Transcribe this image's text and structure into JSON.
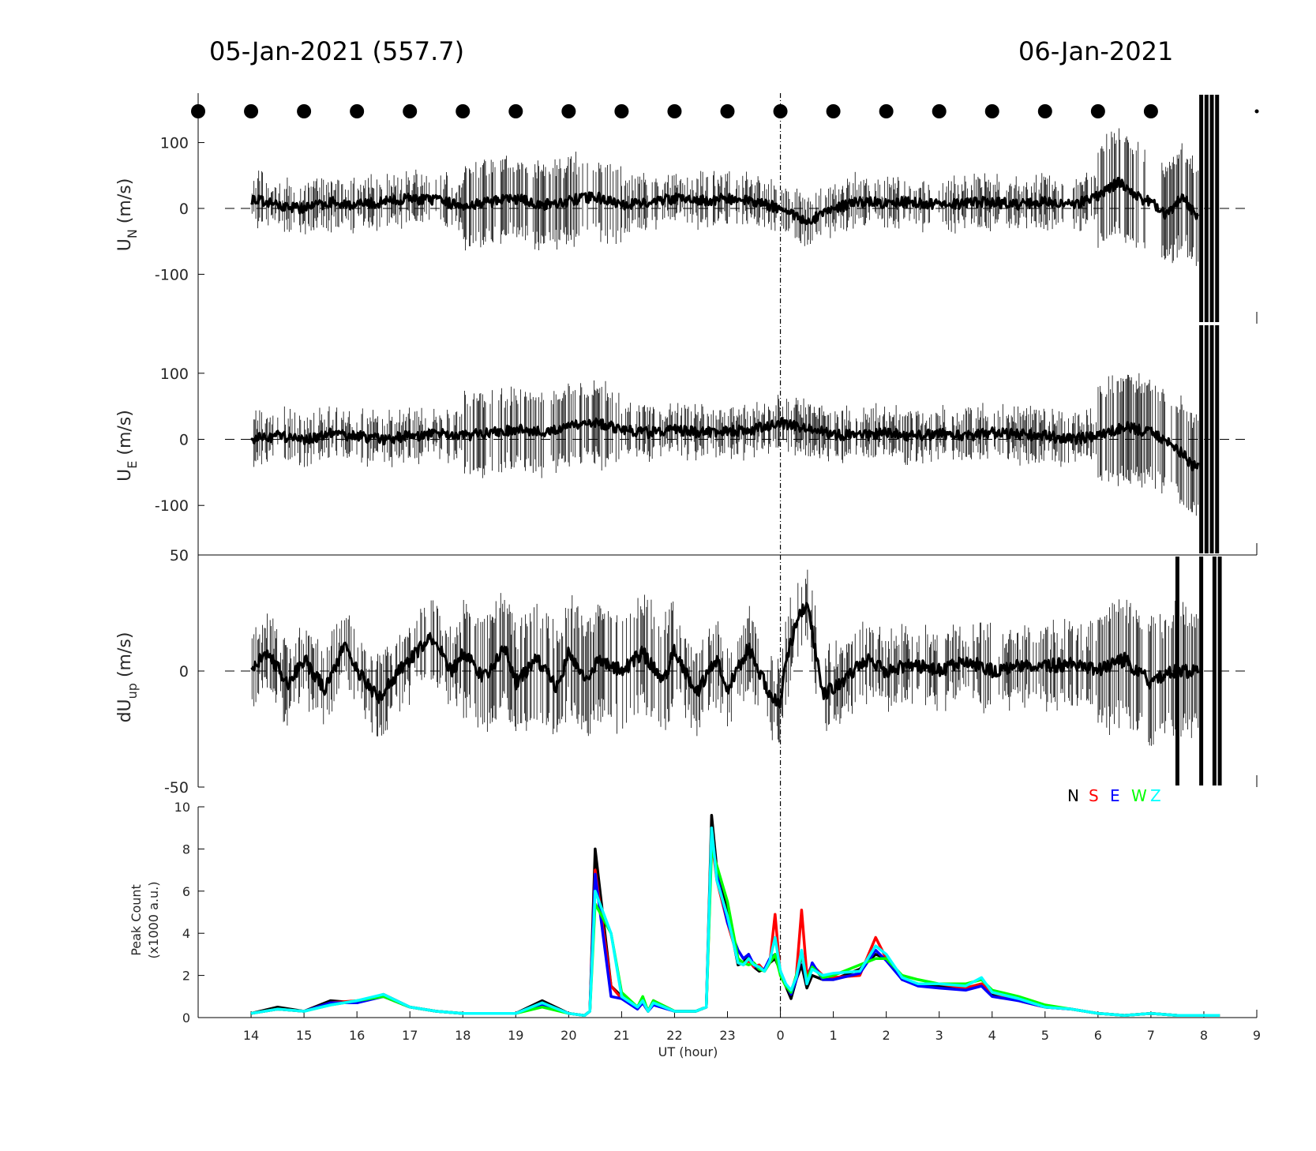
{
  "header": {
    "left_title": "05-Jan-2021 (557.7)",
    "right_title": "06-Jan-2021"
  },
  "chart_data": [
    {
      "type": "line",
      "panel": "UN",
      "ylabel_main": "U",
      "ylabel_sub": "N",
      "ylabel_unit": " (m/s)",
      "yticks": [
        "100",
        "0",
        "-100"
      ],
      "ylim": [
        -175,
        175
      ],
      "xlim": [
        -11,
        9
      ],
      "baseline": 0,
      "grid": false,
      "series": [
        {
          "x": [
            -10,
            -9.5,
            -9,
            -8.5,
            -8,
            -7.5,
            -7,
            -6.5,
            -6,
            -5.5,
            -5,
            -4.5,
            -4,
            -3.5,
            -3,
            -2.5,
            -2,
            -1.5,
            -1,
            -0.5,
            0,
            0.3,
            0.5,
            1,
            1.5,
            2,
            2.5,
            3,
            3.5,
            4,
            4.5,
            5,
            5.5,
            6,
            6.4,
            6.8,
            7,
            7.3,
            7.6,
            7.9
          ],
          "y": [
            15,
            5,
            0,
            10,
            5,
            10,
            15,
            12,
            5,
            10,
            15,
            5,
            12,
            18,
            5,
            10,
            15,
            12,
            15,
            10,
            0,
            -10,
            -20,
            0,
            10,
            8,
            10,
            5,
            8,
            10,
            5,
            10,
            5,
            20,
            40,
            15,
            10,
            -10,
            20,
            -20
          ]
        }
      ],
      "dots_x": [
        -11,
        -10,
        -9,
        -8,
        -7,
        -6,
        -5,
        -4,
        -3,
        -2,
        -1,
        0,
        1,
        2,
        3,
        4,
        5,
        6,
        7
      ]
    },
    {
      "type": "line",
      "panel": "UE",
      "ylabel_main": "U",
      "ylabel_sub": "E",
      "ylabel_unit": " (m/s)",
      "yticks": [
        "100",
        "0",
        "-100"
      ],
      "ylim": [
        -175,
        175
      ],
      "xlim": [
        -11,
        9
      ],
      "baseline": 0,
      "grid": false,
      "series": [
        {
          "x": [
            -10,
            -9.5,
            -9,
            -8.5,
            -8,
            -7.5,
            -7,
            -6.5,
            -6,
            -5.5,
            -5,
            -4.5,
            -4,
            -3.5,
            -3,
            -2.5,
            -2,
            -1.5,
            -1,
            -0.5,
            0,
            0.3,
            0.6,
            1,
            1.5,
            2,
            2.5,
            3,
            3.5,
            4,
            4.5,
            5,
            5.5,
            6,
            6.5,
            7,
            7.4,
            7.8
          ],
          "y": [
            0,
            5,
            0,
            8,
            5,
            0,
            5,
            8,
            5,
            10,
            15,
            10,
            20,
            25,
            15,
            10,
            15,
            10,
            12,
            15,
            25,
            20,
            15,
            8,
            5,
            10,
            5,
            8,
            5,
            10,
            8,
            5,
            0,
            5,
            20,
            10,
            -5,
            -40
          ]
        }
      ]
    },
    {
      "type": "line",
      "panel": "dUup",
      "ylabel_main": "dU",
      "ylabel_sub": "up",
      "ylabel_unit": " (m/s)",
      "yticks": [
        "50",
        "0",
        "-50"
      ],
      "ylim": [
        -50,
        50
      ],
      "xlim": [
        -11,
        9
      ],
      "baseline": 0,
      "grid": false,
      "series": [
        {
          "x": [
            -10,
            -9.7,
            -9.3,
            -9,
            -8.6,
            -8.2,
            -8,
            -7.6,
            -7.2,
            -7,
            -6.6,
            -6.2,
            -6,
            -5.6,
            -5.2,
            -5,
            -4.6,
            -4.2,
            -4,
            -3.7,
            -3.4,
            -3,
            -2.6,
            -2.2,
            -2,
            -1.6,
            -1.2,
            -1,
            -0.6,
            -0.2,
            0,
            0.1,
            0.3,
            0.5,
            0.8,
            1.2,
            1.6,
            2,
            2.5,
            3,
            3.5,
            4,
            4.5,
            5,
            5.5,
            6,
            6.5,
            7,
            7.4
          ],
          "y": [
            0,
            8,
            -5,
            5,
            -8,
            12,
            0,
            -12,
            0,
            5,
            15,
            0,
            8,
            -3,
            10,
            -5,
            5,
            -8,
            8,
            -3,
            5,
            0,
            8,
            -5,
            10,
            -10,
            5,
            -8,
            10,
            -10,
            -15,
            5,
            20,
            30,
            -10,
            -5,
            5,
            0,
            3,
            0,
            5,
            0,
            3,
            2,
            3,
            0,
            5,
            -5,
            0
          ]
        }
      ]
    },
    {
      "type": "line",
      "panel": "peak_count",
      "ylabel_line1": "Peak Count",
      "ylabel_line2": "(x1000 a.u.)",
      "xlabel": "UT (hour)",
      "yticks": [
        "0",
        "2",
        "4",
        "6",
        "8",
        "10"
      ],
      "xticks": [
        "14",
        "15",
        "16",
        "17",
        "18",
        "19",
        "20",
        "21",
        "22",
        "23",
        "0",
        "1",
        "2",
        "3",
        "4",
        "5",
        "6",
        "7",
        "8",
        "9"
      ],
      "ylim": [
        0,
        10
      ],
      "xlim": [
        -11,
        9
      ],
      "grid": false,
      "legend": {
        "placement": "top-right",
        "entries": [
          {
            "name": "N",
            "color": "#000000"
          },
          {
            "name": "S",
            "color": "#ff0000"
          },
          {
            "name": "E",
            "color": "#0000ff"
          },
          {
            "name": "W",
            "color": "#00ff00"
          },
          {
            "name": "Z",
            "color": "#00ffff"
          }
        ]
      },
      "x": [
        -10,
        -9.5,
        -9,
        -8.5,
        -8,
        -7.5,
        -7,
        -6.5,
        -6,
        -5.5,
        -5,
        -4.5,
        -4,
        -3.7,
        -3.6,
        -3.5,
        -3.2,
        -3,
        -2.7,
        -2.6,
        -2.5,
        -2.4,
        -2,
        -1.6,
        -1.4,
        -1.3,
        -1.2,
        -1,
        -0.8,
        -0.7,
        -0.6,
        -0.5,
        -0.4,
        -0.3,
        -0.2,
        -0.1,
        0,
        0.1,
        0.2,
        0.3,
        0.4,
        0.5,
        0.6,
        0.8,
        1,
        1.5,
        1.8,
        2,
        2.3,
        2.6,
        3,
        3.5,
        3.8,
        4,
        4.5,
        5,
        5.5,
        6,
        6.5,
        7,
        7.5,
        8,
        8.3
      ],
      "series": [
        {
          "name": "N",
          "values": [
            0.2,
            0.5,
            0.3,
            0.8,
            0.7,
            1.1,
            0.5,
            0.3,
            0.2,
            0.2,
            0.2,
            0.8,
            0.2,
            0.1,
            0.3,
            8.0,
            1.5,
            1.0,
            0.5,
            0.8,
            0.3,
            0.8,
            0.3,
            0.3,
            0.5,
            9.6,
            7.0,
            5.0,
            2.5,
            2.6,
            3.0,
            2.4,
            2.2,
            2.3,
            2.6,
            2.8,
            2.2,
            1.5,
            0.9,
            1.8,
            2.5,
            1.4,
            2.0,
            1.8,
            1.8,
            2.3,
            3.0,
            2.8,
            1.8,
            1.6,
            1.5,
            1.4,
            1.6,
            1.1,
            0.8,
            0.5,
            0.4,
            0.2,
            0.1,
            0.2,
            0.1,
            0.1,
            0.1
          ]
        },
        {
          "name": "S",
          "values": [
            0.2,
            0.4,
            0.3,
            0.7,
            0.8,
            1.0,
            0.5,
            0.3,
            0.2,
            0.2,
            0.2,
            0.6,
            0.2,
            0.1,
            0.3,
            7.0,
            1.5,
            0.9,
            0.5,
            0.7,
            0.3,
            0.7,
            0.3,
            0.3,
            0.5,
            8.5,
            6.5,
            4.5,
            2.8,
            2.5,
            2.7,
            2.4,
            2.5,
            2.2,
            2.6,
            4.9,
            2.0,
            1.5,
            1.2,
            2.0,
            5.1,
            2.0,
            2.5,
            2.0,
            1.9,
            2.0,
            3.8,
            2.8,
            1.8,
            1.6,
            1.6,
            1.4,
            1.6,
            1.2,
            0.8,
            0.5,
            0.4,
            0.2,
            0.1,
            0.2,
            0.1,
            0.1,
            0.1
          ]
        },
        {
          "name": "E",
          "values": [
            0.2,
            0.4,
            0.3,
            0.7,
            0.7,
            1.0,
            0.5,
            0.3,
            0.2,
            0.2,
            0.2,
            0.6,
            0.2,
            0.1,
            0.3,
            6.8,
            1.0,
            0.9,
            0.4,
            0.7,
            0.3,
            0.6,
            0.3,
            0.3,
            0.5,
            8.8,
            6.8,
            4.5,
            3.2,
            2.8,
            3.0,
            2.5,
            2.3,
            2.3,
            2.8,
            3.0,
            2.2,
            1.6,
            1.1,
            1.8,
            3.0,
            1.6,
            2.6,
            1.8,
            1.8,
            2.1,
            3.2,
            2.7,
            1.8,
            1.5,
            1.4,
            1.3,
            1.5,
            1.0,
            0.8,
            0.5,
            0.4,
            0.2,
            0.1,
            0.2,
            0.1,
            0.1,
            0.1
          ]
        },
        {
          "name": "W",
          "values": [
            0.2,
            0.4,
            0.3,
            0.6,
            0.8,
            1.0,
            0.5,
            0.3,
            0.2,
            0.2,
            0.2,
            0.5,
            0.2,
            0.1,
            0.3,
            5.4,
            4.0,
            1.2,
            0.5,
            1.0,
            0.3,
            0.8,
            0.3,
            0.3,
            0.5,
            8.0,
            7.2,
            5.5,
            2.8,
            2.6,
            2.5,
            2.6,
            2.3,
            2.2,
            2.6,
            3.0,
            2.0,
            1.5,
            1.2,
            2.0,
            3.0,
            1.8,
            2.4,
            1.9,
            2.0,
            2.5,
            2.8,
            2.8,
            2.0,
            1.8,
            1.6,
            1.6,
            1.8,
            1.3,
            1.0,
            0.6,
            0.4,
            0.2,
            0.1,
            0.2,
            0.1,
            0.1,
            0.1
          ]
        },
        {
          "name": "Z",
          "values": [
            0.2,
            0.4,
            0.3,
            0.6,
            0.8,
            1.1,
            0.5,
            0.3,
            0.2,
            0.2,
            0.2,
            0.7,
            0.2,
            0.1,
            0.3,
            6.0,
            4.0,
            1.0,
            0.5,
            0.8,
            0.3,
            0.7,
            0.3,
            0.3,
            0.5,
            9.0,
            6.5,
            4.8,
            2.6,
            2.5,
            2.8,
            2.5,
            2.4,
            2.2,
            2.7,
            3.8,
            2.2,
            1.6,
            1.3,
            1.9,
            3.2,
            1.6,
            2.3,
            2.0,
            2.1,
            2.2,
            3.4,
            3.0,
            1.9,
            1.6,
            1.6,
            1.5,
            1.9,
            1.2,
            0.9,
            0.5,
            0.4,
            0.2,
            0.1,
            0.2,
            0.1,
            0.1,
            0.1
          ]
        }
      ]
    }
  ]
}
